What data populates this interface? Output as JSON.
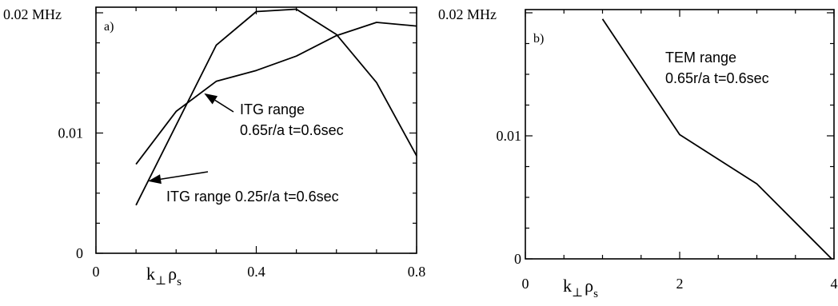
{
  "chart_data": [
    {
      "type": "line",
      "panel_label": "a)",
      "y_top_label": "0.02 MHz",
      "xlim": [
        0,
        0.8
      ],
      "ylim": [
        0,
        0.02
      ],
      "x_tick_labels": [
        {
          "value": 0,
          "text": "0"
        },
        {
          "value": 0.4,
          "text": "0.4"
        },
        {
          "value": 0.8,
          "text": "0.8"
        }
      ],
      "y_tick_labels": [
        {
          "value": 0,
          "text": "0"
        },
        {
          "value": 0.01,
          "text": "0.01"
        }
      ],
      "xlabel": "k⊥ρs",
      "series": [
        {
          "name": "ITG range 0.25r/a t=0.6sec",
          "points": [
            [
              0.1,
              0.004
            ],
            [
              0.3,
              0.0173
            ],
            [
              0.4,
              0.0201
            ],
            [
              0.5,
              0.0203
            ],
            [
              0.6,
              0.0182
            ],
            [
              0.7,
              0.0142
            ],
            [
              0.8,
              0.0081
            ]
          ]
        },
        {
          "name": "ITG range 0.65r/a t=0.6sec",
          "points": [
            [
              0.1,
              0.0074
            ],
            [
              0.2,
              0.0118
            ],
            [
              0.3,
              0.0143
            ],
            [
              0.4,
              0.0152
            ],
            [
              0.5,
              0.0164
            ],
            [
              0.6,
              0.0181
            ],
            [
              0.7,
              0.0192
            ],
            [
              0.8,
              0.0189
            ]
          ]
        }
      ],
      "annotations": [
        {
          "line1": "ITG range",
          "line2": "0.65r/a t=0.6sec",
          "points_to": [
            0.27,
            0.0133
          ]
        },
        {
          "line1": "ITG range 0.25r/a t=0.6sec",
          "points_to": [
            0.13,
            0.006
          ]
        }
      ]
    },
    {
      "type": "line",
      "panel_label": "b)",
      "y_top_label": "0.02 MHz",
      "xlim": [
        0,
        4
      ],
      "ylim": [
        0,
        0.02
      ],
      "x_tick_labels": [
        {
          "value": 0,
          "text": "0"
        },
        {
          "value": 2,
          "text": "2"
        },
        {
          "value": 4,
          "text": "4"
        }
      ],
      "y_tick_labels": [
        {
          "value": 0,
          "text": "0"
        },
        {
          "value": 0.01,
          "text": "0.01"
        }
      ],
      "xlabel": "k⊥ρs",
      "series": [
        {
          "name": "TEM range 0.65r/a t=0.6sec",
          "points": [
            [
              1.0,
              0.0195
            ],
            [
              2.0,
              0.0101
            ],
            [
              3.0,
              0.0061
            ],
            [
              3.97,
              0.0
            ]
          ]
        }
      ],
      "annotations": [
        {
          "line1": "TEM range",
          "line2": "0.65r/a t=0.6sec"
        }
      ]
    }
  ]
}
